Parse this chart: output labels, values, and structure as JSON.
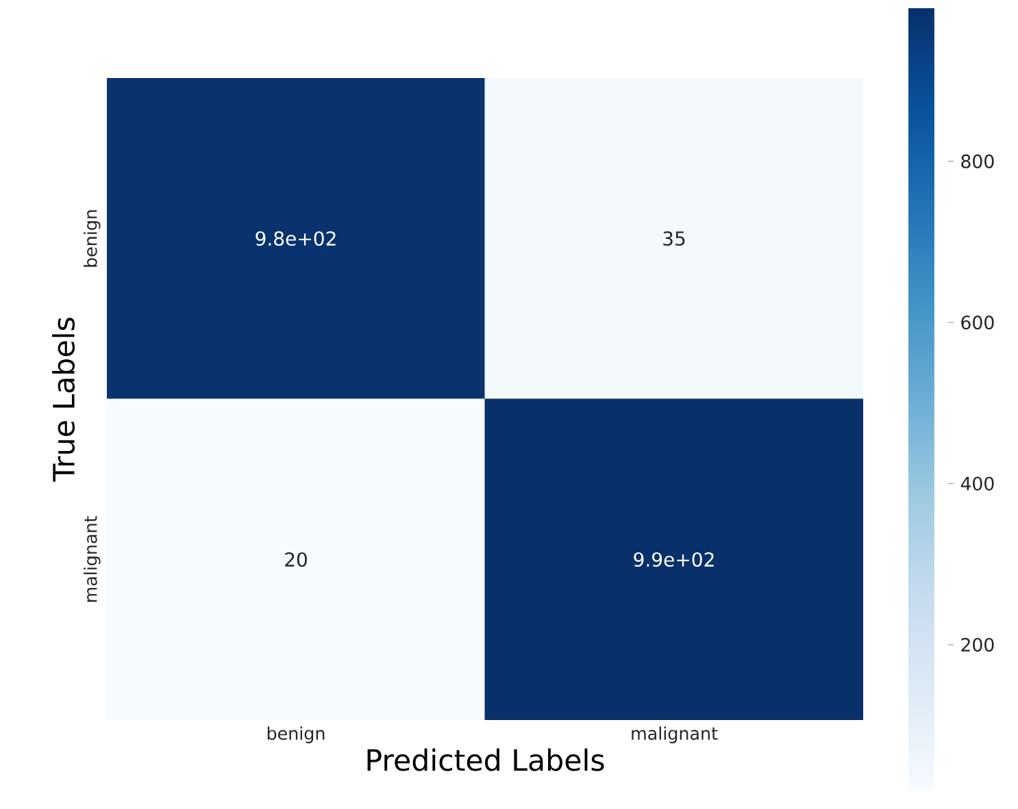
{
  "chart_data": {
    "type": "heatmap",
    "xlabel": "Predicted Labels",
    "ylabel": "True Labels",
    "categories": [
      "benign",
      "malignant"
    ],
    "y_categories": [
      "benign",
      "malignant"
    ],
    "cells": [
      [
        980,
        35
      ],
      [
        20,
        990
      ]
    ],
    "cell_labels": [
      [
        "9.8e+02",
        "35"
      ],
      [
        "20",
        "9.9e+02"
      ]
    ],
    "clim": [
      20,
      990
    ],
    "cticks": [
      200,
      400,
      600,
      800
    ]
  }
}
